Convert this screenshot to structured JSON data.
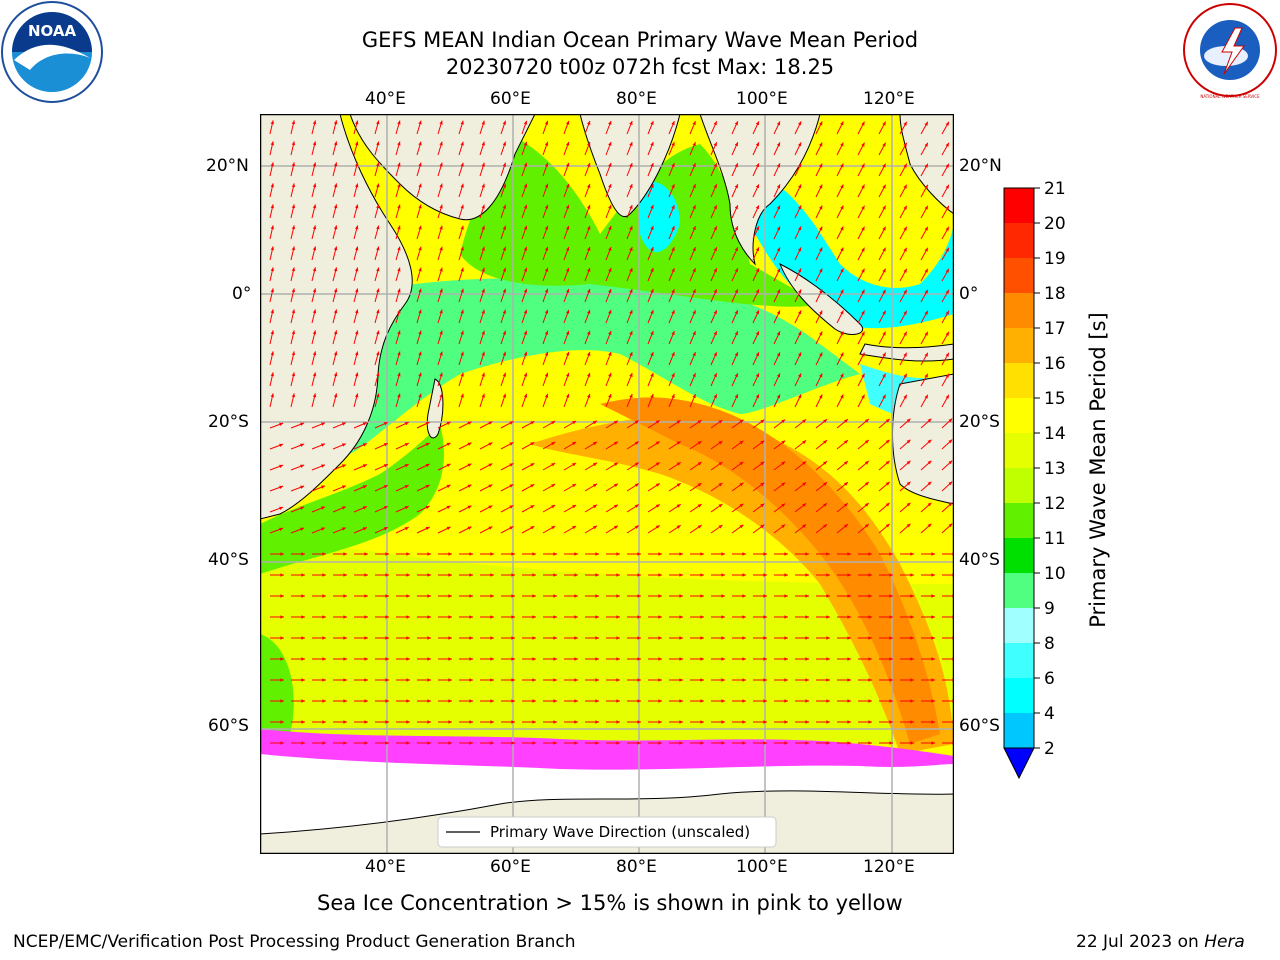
{
  "title": {
    "line1": "GEFS MEAN Indian Ocean Primary Wave Mean Period",
    "line2": "20230720 t00z 072h fcst   Max: 18.25"
  },
  "axes": {
    "lon_labels": [
      "40°E",
      "60°E",
      "80°E",
      "100°E",
      "120°E"
    ],
    "lat_labels": [
      "20°N",
      "0°",
      "20°S",
      "40°S",
      "60°S"
    ]
  },
  "colorbar": {
    "label": "Primary Wave Mean Period [s]",
    "ticks": [
      "2",
      "4",
      "6",
      "8",
      "9",
      "10",
      "11",
      "12",
      "13",
      "14",
      "15",
      "16",
      "17",
      "18",
      "19",
      "20",
      "21"
    ],
    "colors": [
      "#0050ff",
      "#00c8ff",
      "#00ffff",
      "#40ffff",
      "#a0ffff",
      "#50ff80",
      "#00e000",
      "#60f000",
      "#c0ff00",
      "#e6ff00",
      "#ffff00",
      "#ffe000",
      "#ffb000",
      "#ff8c00",
      "#ff5000",
      "#ff2800",
      "#ff0000"
    ],
    "extend_color": "#0000ff"
  },
  "legend": {
    "label": "Primary Wave Direction (unscaled)"
  },
  "subtitle": "Sea Ice Concentration > 15% is shown in pink to yellow",
  "footer": {
    "left": "NCEP/EMC/Verification Post Processing Product Generation Branch",
    "date": "22 Jul 2023 on ",
    "machine": "Hera"
  },
  "logos": {
    "noaa_text": "NOAA",
    "nws_text": "NATIONAL WEATHER SERVICE"
  },
  "map_colors": {
    "land": "#f0eedc",
    "ice_mask": "#ffffff",
    "arrow": "#ff0000",
    "grid": "#b0b0b0"
  }
}
